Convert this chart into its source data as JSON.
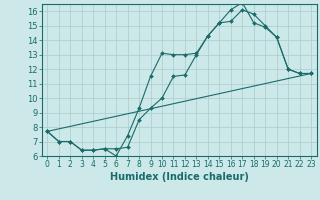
{
  "title": "",
  "xlabel": "Humidex (Indice chaleur)",
  "bg_color": "#cce8e8",
  "grid_color": "#aacccc",
  "line_color": "#1a6b6b",
  "spine_color": "#1a6b6b",
  "xlim": [
    -0.5,
    23.5
  ],
  "ylim": [
    6,
    16.5
  ],
  "xticks": [
    0,
    1,
    2,
    3,
    4,
    5,
    6,
    7,
    8,
    9,
    10,
    11,
    12,
    13,
    14,
    15,
    16,
    17,
    18,
    19,
    20,
    21,
    22,
    23
  ],
  "yticks": [
    6,
    7,
    8,
    9,
    10,
    11,
    12,
    13,
    14,
    15,
    16
  ],
  "line1_x": [
    0,
    1,
    2,
    3,
    4,
    5,
    6,
    7,
    8,
    9,
    10,
    11,
    12,
    13,
    14,
    15,
    16,
    17,
    18,
    19,
    20,
    21,
    22,
    23
  ],
  "line1_y": [
    7.7,
    7.0,
    7.0,
    6.4,
    6.4,
    6.5,
    6.5,
    6.6,
    8.5,
    9.3,
    10.0,
    11.5,
    11.6,
    13.0,
    14.3,
    15.2,
    15.3,
    16.1,
    15.8,
    15.0,
    14.2,
    12.0,
    11.7,
    11.7
  ],
  "line2_x": [
    0,
    1,
    2,
    3,
    4,
    5,
    6,
    7,
    8,
    9,
    10,
    11,
    12,
    13,
    14,
    15,
    16,
    17,
    18,
    19,
    20,
    21,
    22,
    23
  ],
  "line2_y": [
    7.7,
    7.0,
    7.0,
    6.4,
    6.4,
    6.5,
    6.0,
    7.4,
    9.3,
    11.5,
    13.1,
    13.0,
    13.0,
    13.1,
    14.3,
    15.2,
    16.1,
    16.6,
    15.2,
    14.9,
    14.2,
    12.0,
    11.7,
    11.7
  ],
  "line3_x": [
    0,
    23
  ],
  "line3_y": [
    7.7,
    11.7
  ],
  "xlabel_fontsize": 7,
  "tick_fontsize": 5.5,
  "lw": 0.8,
  "ms": 2.0
}
